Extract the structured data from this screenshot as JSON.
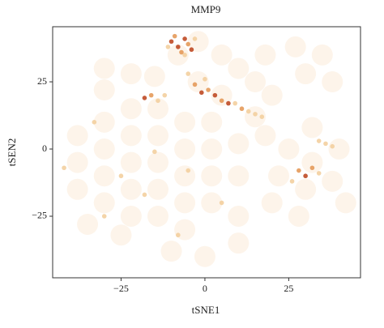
{
  "chart_data": {
    "type": "scatter",
    "title": "MMP9",
    "xlabel": "tSNE1",
    "ylabel": "tSEN2",
    "xlim": [
      -45.4,
      46.4
    ],
    "ylim": [
      -47.9,
      45.5
    ],
    "xticks": [
      {
        "value": -25,
        "label": "−25"
      },
      0,
      25
    ],
    "yticks": [
      {
        "value": -25,
        "label": "−25"
      },
      0,
      25
    ],
    "series": [
      {
        "color": "#fdf4ea",
        "x": [
          -38,
          -38,
          -38,
          -30,
          -30,
          -30,
          -30,
          -22,
          -22,
          -22,
          -22,
          -22,
          -14,
          -14,
          -14,
          -14,
          -14,
          -6,
          -6,
          -6,
          -6,
          -6,
          2,
          2,
          2,
          2,
          -10,
          0,
          10,
          10,
          10,
          10,
          -30,
          -22,
          -30,
          -15,
          -8,
          -2,
          5,
          10,
          15,
          20,
          18,
          27,
          35,
          30,
          38,
          18,
          25,
          32,
          40,
          22,
          30,
          38,
          20,
          28,
          42,
          32,
          15,
          -35,
          -25,
          5,
          -2
        ],
        "y": [
          5,
          -5,
          -15,
          10,
          0,
          -10,
          -20,
          15,
          5,
          -5,
          -15,
          -25,
          15,
          5,
          -5,
          -15,
          -25,
          10,
          0,
          -10,
          -20,
          -30,
          10,
          0,
          -10,
          -20,
          -38,
          -40,
          -35,
          -25,
          -10,
          2,
          30,
          28,
          22,
          27,
          35,
          40,
          35,
          30,
          25,
          20,
          35,
          38,
          35,
          28,
          25,
          5,
          0,
          -5,
          0,
          -10,
          -15,
          -12,
          -20,
          -25,
          -20,
          8,
          12,
          -28,
          -32,
          20,
          25
        ]
      },
      {
        "color": "#f3cf9f",
        "x": [
          -3,
          -11,
          -6,
          -5,
          9,
          13,
          15,
          17,
          0,
          -14,
          -12,
          34,
          26,
          36,
          38,
          34,
          -33,
          -15,
          -5,
          -18,
          -8,
          -42,
          -30,
          -25,
          5
        ],
        "y": [
          41,
          38,
          35,
          28,
          17,
          14,
          13,
          12,
          26,
          18,
          20,
          -9,
          -12,
          2,
          1,
          3,
          10,
          -1,
          -8,
          -17,
          -32,
          -7,
          -25,
          -10,
          -20
        ]
      },
      {
        "color": "#e49a5a",
        "x": [
          -5,
          -7,
          -9,
          -3,
          1,
          5,
          11,
          -16,
          28,
          32
        ],
        "y": [
          39,
          36,
          42,
          24,
          22,
          18,
          15,
          20,
          -8,
          -7
        ]
      },
      {
        "color": "#bf4a25",
        "x": [
          -10,
          -8,
          -6,
          -4,
          -1,
          3,
          7,
          -18,
          30
        ],
        "y": [
          40,
          38,
          41,
          37,
          21,
          20,
          17,
          19,
          -10
        ]
      }
    ]
  }
}
